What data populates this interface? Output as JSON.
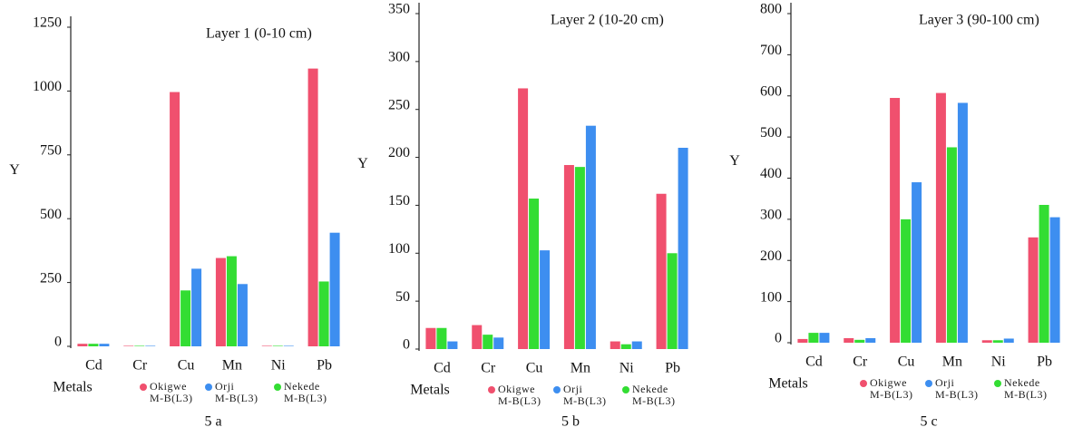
{
  "chart_data": [
    {
      "type": "bar",
      "title": "Layer 1 (0-10 cm)",
      "caption": "5 a",
      "x_label": "Metals",
      "y_label": "Y",
      "categories": [
        "Cd",
        "Cr",
        "Cu",
        "Mn",
        "Ni",
        "Pb"
      ],
      "series": [
        {
          "name": "Okigwe\nM-B(L3)",
          "color": "#f0506e",
          "values": [
            10,
            2,
            996,
            346,
            2,
            1088
          ]
        },
        {
          "name": "Orji\nM-B(L3)",
          "color": "#3d8ef0",
          "values": [
            10,
            2,
            304,
            244,
            2,
            445
          ]
        },
        {
          "name": "Nekede\nM-B(L3)",
          "color": "#33dd33",
          "values": [
            10,
            2,
            219,
            353,
            2,
            254
          ]
        }
      ],
      "ylim": [
        0,
        1250
      ],
      "yticks": [
        0,
        250,
        500,
        750,
        1000,
        1250
      ]
    },
    {
      "type": "bar",
      "title": "Layer 2 (10-20 cm)",
      "caption": "5 b",
      "x_label": "Metals",
      "y_label": "Y",
      "categories": [
        "Cd",
        "Cr",
        "Cu",
        "Mn",
        "Ni",
        "Pb"
      ],
      "series": [
        {
          "name": "Okigwe\nM-B(L3)",
          "color": "#f0506e",
          "values": [
            22,
            25,
            272,
            192,
            8,
            162
          ]
        },
        {
          "name": "Orji\nM-B(L3)",
          "color": "#3d8ef0",
          "values": [
            8,
            12,
            103,
            233,
            8,
            210
          ]
        },
        {
          "name": "Nekede\nM-B(L3)",
          "color": "#33dd33",
          "values": [
            22,
            15,
            157,
            190,
            5,
            100
          ]
        }
      ],
      "ylim": [
        0,
        350
      ],
      "yticks": [
        0,
        50,
        100,
        150,
        200,
        250,
        300,
        350
      ]
    },
    {
      "type": "bar",
      "title": "Layer 3 (90-100 cm)",
      "caption": "5 c",
      "x_label": "Metals",
      "y_label": "Y",
      "categories": [
        "Cd",
        "Cr",
        "Cu",
        "Mn",
        "Ni",
        "Pb"
      ],
      "series": [
        {
          "name": "Okigwe\nM-B(L3)",
          "color": "#f0506e",
          "values": [
            9,
            11,
            595,
            607,
            6,
            256
          ]
        },
        {
          "name": "Orji\nM-B(L3)",
          "color": "#3d8ef0",
          "values": [
            24,
            11,
            390,
            583,
            10,
            305
          ]
        },
        {
          "name": "Nekede\nM-B(L3)",
          "color": "#33dd33",
          "values": [
            24,
            7,
            300,
            475,
            6,
            335
          ]
        }
      ],
      "ylim": [
        0,
        800
      ],
      "yticks": [
        0,
        100,
        200,
        300,
        400,
        500,
        600,
        700,
        800
      ]
    }
  ]
}
